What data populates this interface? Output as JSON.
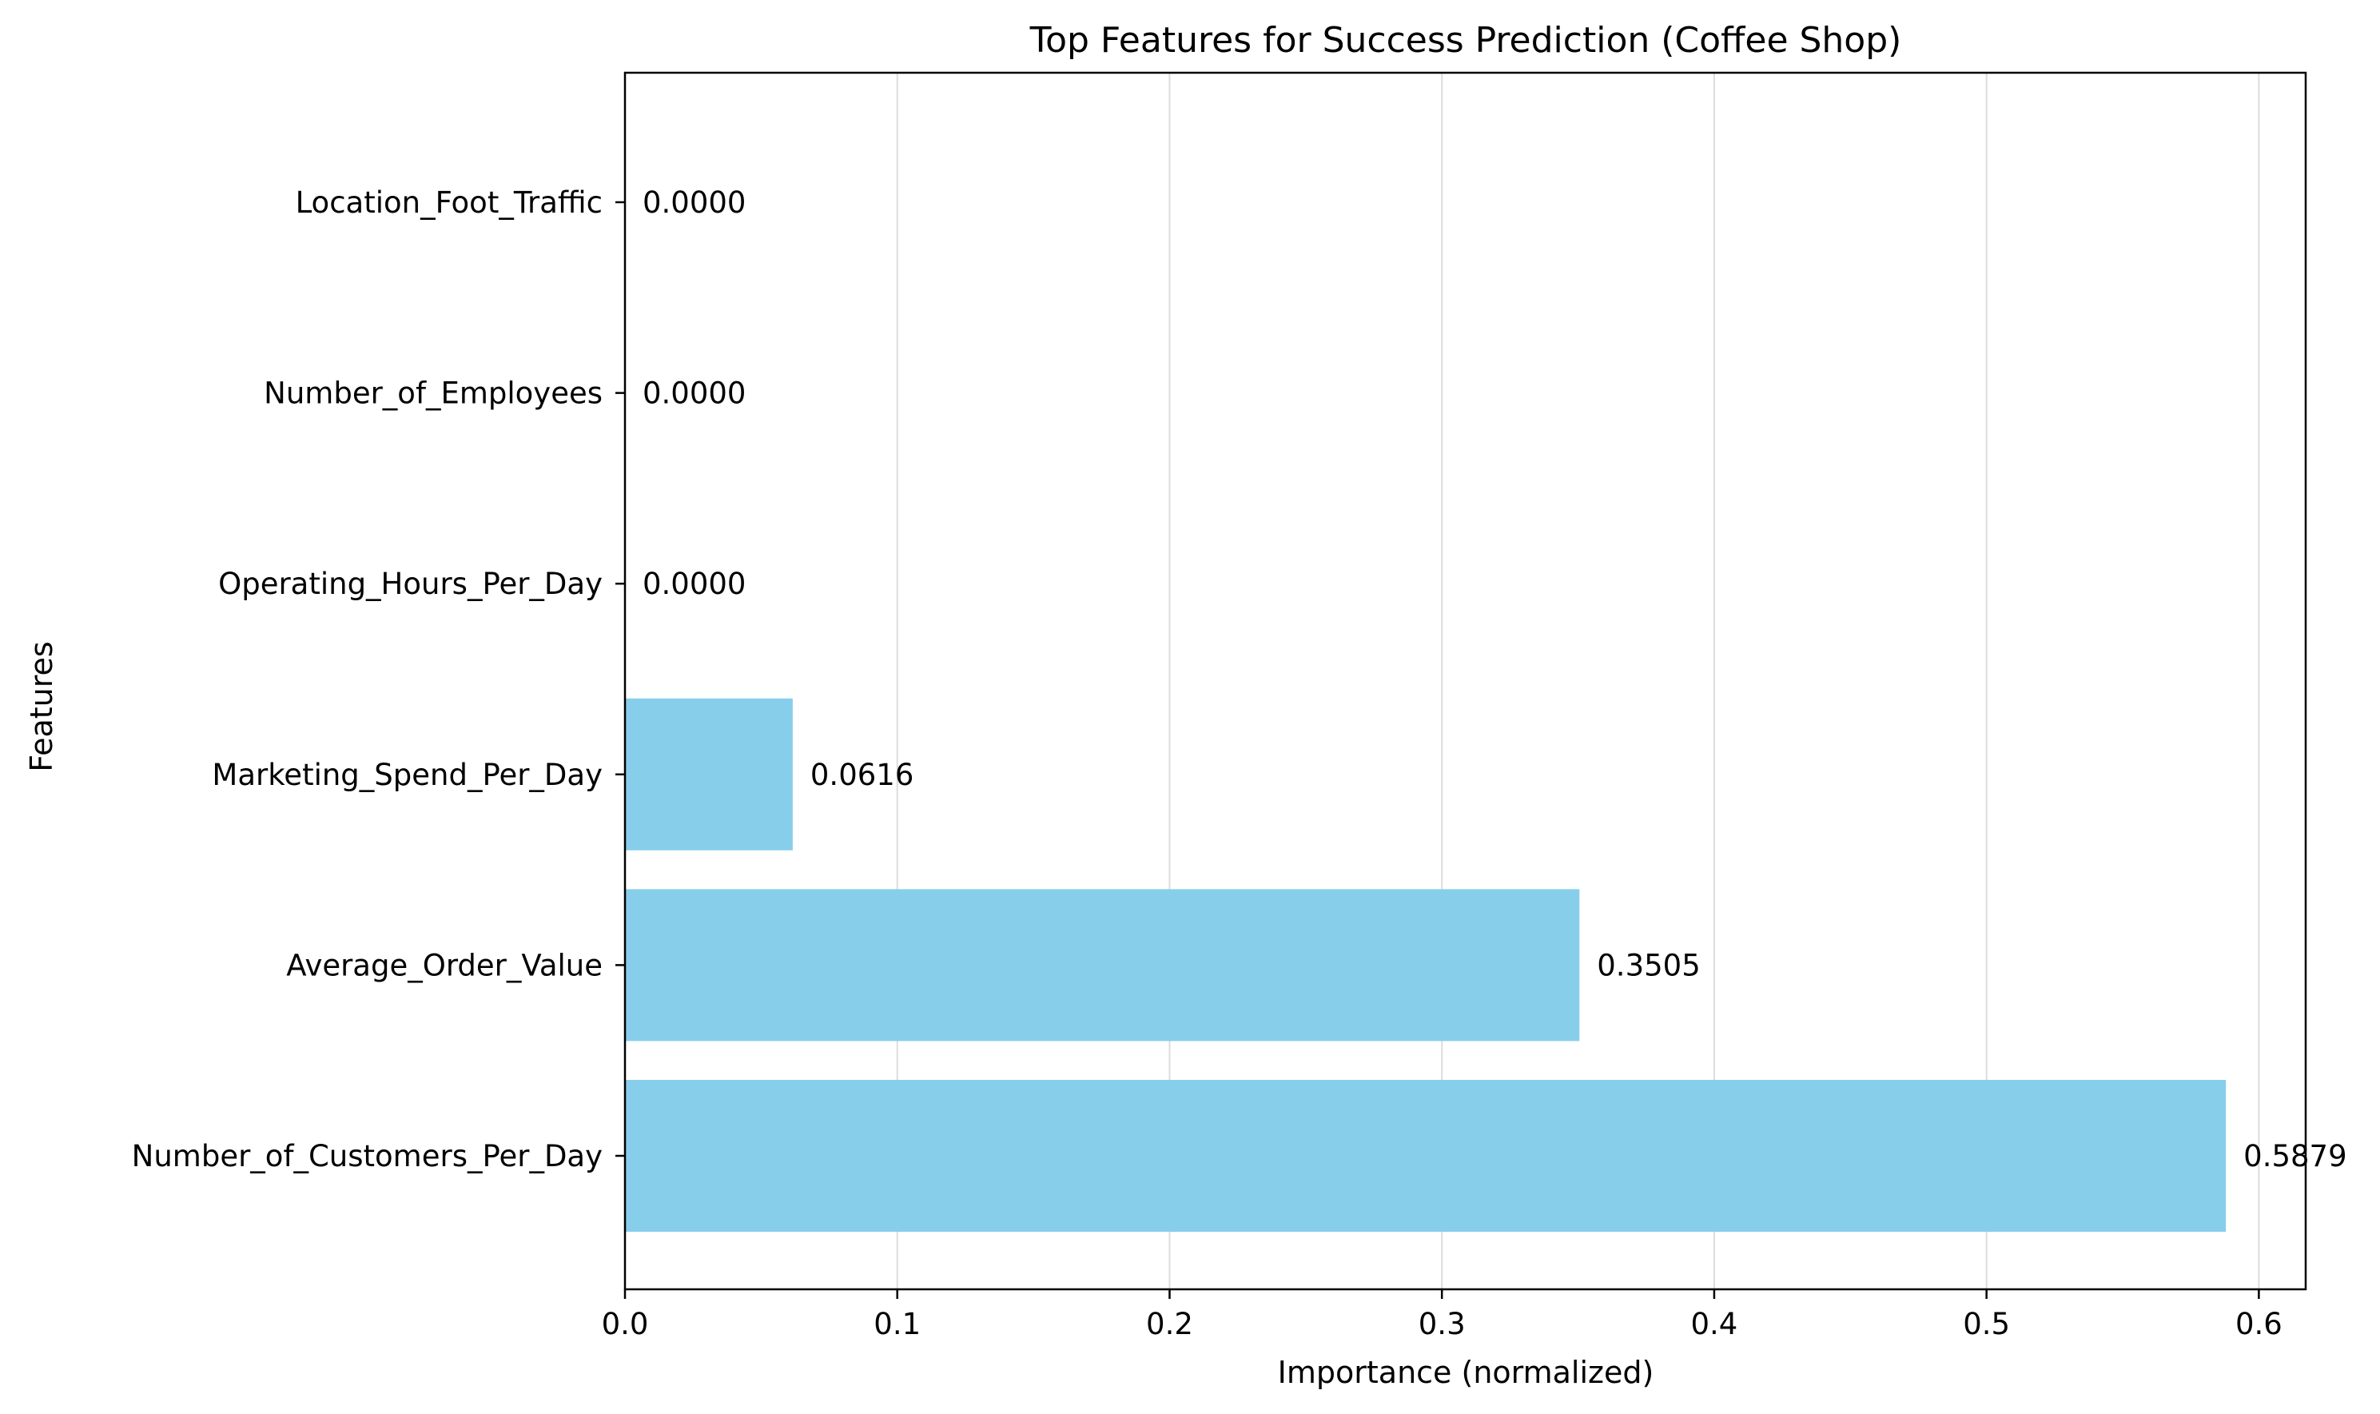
{
  "chart_data": {
    "type": "bar",
    "orientation": "horizontal",
    "title": "Top Features for Success Prediction (Coffee Shop)",
    "xlabel": "Importance (normalized)",
    "ylabel": "Features",
    "categories": [
      "Number_of_Customers_Per_Day",
      "Average_Order_Value",
      "Marketing_Spend_Per_Day",
      "Operating_Hours_Per_Day",
      "Number_of_Employees",
      "Location_Foot_Traffic"
    ],
    "values": [
      0.5879,
      0.3505,
      0.0616,
      0.0,
      0.0,
      0.0
    ],
    "value_labels": [
      "0.5879",
      "0.3505",
      "0.0616",
      "0.0000",
      "0.0000",
      "0.0000"
    ],
    "xticks": [
      "0.0",
      "0.1",
      "0.2",
      "0.3",
      "0.4",
      "0.5",
      "0.6"
    ],
    "xlim": [
      0,
      0.6172
    ],
    "grid": "vertical",
    "bar_color": "#87ceeb"
  }
}
